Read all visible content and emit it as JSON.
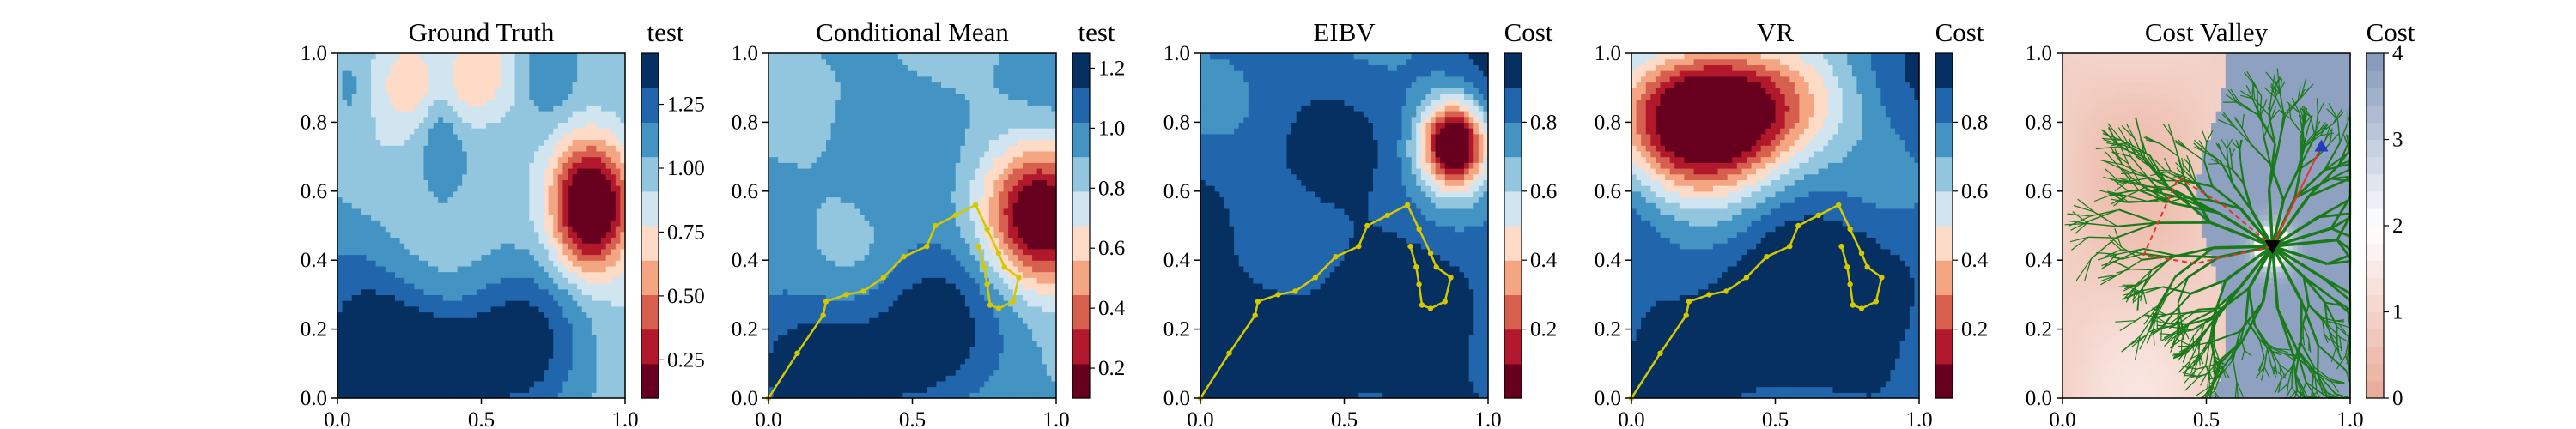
{
  "chart_data": [
    {
      "type": "heatmap",
      "title": "Ground Truth",
      "colorbar_label": "test",
      "colormap": "RdBu",
      "xlim": [
        0,
        1
      ],
      "ylim": [
        0,
        1
      ],
      "xticks": [
        "0.0",
        "0.5",
        "1.0"
      ],
      "yticks": [
        "0.0",
        "0.2",
        "0.4",
        "0.6",
        "0.8",
        "1.0"
      ],
      "colorbar_range": [
        0.1,
        1.45
      ],
      "colorbar_ticks": [
        "0.25",
        "0.50",
        "0.75",
        "1.00",
        "1.25"
      ],
      "colorbar_tick_values": [
        0.25,
        0.5,
        0.75,
        1.0,
        1.25
      ],
      "levels": 10,
      "field_features": [
        {
          "x": 0.88,
          "y": 0.55,
          "sx": 0.09,
          "sy": 0.13,
          "amp": -1.0
        },
        {
          "x": 0.38,
          "y": 0.92,
          "sx": 0.17,
          "sy": 0.1,
          "amp": -0.38
        },
        {
          "x": 0.36,
          "y": 0.86,
          "sx": 0.05,
          "sy": 0.18,
          "amp": 0.25
        },
        {
          "x": 0.22,
          "y": 0.08,
          "sx": 0.22,
          "sy": 0.12,
          "amp": 0.55
        },
        {
          "x": 0.62,
          "y": 0.12,
          "sx": 0.16,
          "sy": 0.18,
          "amp": 0.4
        },
        {
          "x": 0.12,
          "y": 0.3,
          "sx": 0.18,
          "sy": 0.15,
          "amp": 0.3
        },
        {
          "x": 0.05,
          "y": 0.9,
          "sx": 0.07,
          "sy": 0.1,
          "amp": 0.25
        },
        {
          "x": 0.72,
          "y": 0.95,
          "sx": 0.08,
          "sy": 0.1,
          "amp": 0.3
        }
      ],
      "base": 0.95
    },
    {
      "type": "heatmap",
      "title": "Conditional Mean",
      "colorbar_label": "test",
      "colormap": "RdBu",
      "xlim": [
        0,
        1
      ],
      "ylim": [
        0,
        1
      ],
      "xticks": [
        "0.0",
        "0.5",
        "1.0"
      ],
      "yticks": [
        "0.0",
        "0.2",
        "0.4",
        "0.6",
        "0.8",
        "1.0"
      ],
      "colorbar_range": [
        0.1,
        1.25
      ],
      "colorbar_ticks": [
        "0.2",
        "0.4",
        "0.6",
        "0.8",
        "1.0",
        "1.2"
      ],
      "colorbar_tick_values": [
        0.2,
        0.4,
        0.6,
        0.8,
        1.0,
        1.2
      ],
      "levels": 10,
      "field_features": [
        {
          "x": 0.95,
          "y": 0.52,
          "sx": 0.13,
          "sy": 0.14,
          "amp": -0.85
        },
        {
          "x": 0.25,
          "y": 0.1,
          "sx": 0.3,
          "sy": 0.17,
          "amp": 0.25
        },
        {
          "x": 0.55,
          "y": 0.2,
          "sx": 0.13,
          "sy": 0.2,
          "amp": 0.2
        }
      ],
      "base": 0.92,
      "path": [
        [
          0.0,
          0.0
        ],
        [
          0.1,
          0.13
        ],
        [
          0.19,
          0.24
        ],
        [
          0.2,
          0.28
        ],
        [
          0.27,
          0.3
        ],
        [
          0.33,
          0.31
        ],
        [
          0.4,
          0.35
        ],
        [
          0.47,
          0.41
        ],
        [
          0.55,
          0.44
        ],
        [
          0.58,
          0.5
        ],
        [
          0.65,
          0.53
        ],
        [
          0.72,
          0.56
        ],
        [
          0.76,
          0.49
        ],
        [
          0.8,
          0.42
        ],
        [
          0.82,
          0.38
        ],
        [
          0.87,
          0.35
        ],
        [
          0.85,
          0.28
        ],
        [
          0.8,
          0.26
        ],
        [
          0.77,
          0.27
        ],
        [
          0.76,
          0.33
        ],
        [
          0.75,
          0.38
        ],
        [
          0.73,
          0.44
        ]
      ]
    },
    {
      "type": "heatmap",
      "title": "EIBV",
      "colorbar_label": "Cost",
      "colormap": "RdBu",
      "xlim": [
        0,
        1
      ],
      "ylim": [
        0,
        1
      ],
      "xticks": [
        "0.0",
        "0.5",
        "1.0"
      ],
      "yticks": [
        "0.0",
        "0.2",
        "0.4",
        "0.6",
        "0.8",
        "1.0"
      ],
      "colorbar_range": [
        0,
        1
      ],
      "colorbar_ticks": [
        "0.2",
        "0.4",
        "0.6",
        "0.8"
      ],
      "colorbar_tick_values": [
        0.2,
        0.4,
        0.6,
        0.8
      ],
      "levels": 10,
      "field_features": [
        {
          "x": 0.88,
          "y": 0.74,
          "sx": 0.08,
          "sy": 0.09,
          "amp": -0.95
        },
        {
          "x": 0.25,
          "y": 0.1,
          "sx": 0.5,
          "sy": 0.28,
          "amp": 0.15
        }
      ],
      "base": 0.85,
      "path": [
        [
          0.0,
          0.0
        ],
        [
          0.1,
          0.13
        ],
        [
          0.19,
          0.24
        ],
        [
          0.2,
          0.28
        ],
        [
          0.27,
          0.3
        ],
        [
          0.33,
          0.31
        ],
        [
          0.4,
          0.35
        ],
        [
          0.47,
          0.41
        ],
        [
          0.55,
          0.44
        ],
        [
          0.58,
          0.5
        ],
        [
          0.65,
          0.53
        ],
        [
          0.72,
          0.56
        ],
        [
          0.76,
          0.49
        ],
        [
          0.8,
          0.42
        ],
        [
          0.82,
          0.38
        ],
        [
          0.87,
          0.35
        ],
        [
          0.85,
          0.28
        ],
        [
          0.8,
          0.26
        ],
        [
          0.77,
          0.27
        ],
        [
          0.76,
          0.33
        ],
        [
          0.75,
          0.38
        ],
        [
          0.73,
          0.44
        ]
      ]
    },
    {
      "type": "heatmap",
      "title": "VR",
      "colorbar_label": "Cost",
      "colormap": "RdBu",
      "xlim": [
        0,
        1
      ],
      "ylim": [
        0,
        1
      ],
      "xticks": [
        "0.0",
        "0.5",
        "1.0"
      ],
      "yticks": [
        "0.0",
        "0.2",
        "0.4",
        "0.6",
        "0.8",
        "1.0"
      ],
      "colorbar_range": [
        0,
        1
      ],
      "colorbar_ticks": [
        "0.2",
        "0.4",
        "0.6",
        "0.8"
      ],
      "colorbar_tick_values": [
        0.2,
        0.4,
        0.6,
        0.8
      ],
      "levels": 10,
      "field_features": [
        {
          "x": 0.27,
          "y": 0.8,
          "sx": 0.2,
          "sy": 0.15,
          "amp": -1.05
        },
        {
          "x": 0.55,
          "y": 0.85,
          "sx": 0.18,
          "sy": 0.12,
          "amp": -0.3
        },
        {
          "x": 0.55,
          "y": 0.28,
          "sx": 0.25,
          "sy": 0.18,
          "amp": 0.25
        }
      ],
      "base": 0.85,
      "path": [
        [
          0.0,
          0.0
        ],
        [
          0.1,
          0.13
        ],
        [
          0.19,
          0.24
        ],
        [
          0.2,
          0.28
        ],
        [
          0.27,
          0.3
        ],
        [
          0.33,
          0.31
        ],
        [
          0.4,
          0.35
        ],
        [
          0.47,
          0.41
        ],
        [
          0.55,
          0.44
        ],
        [
          0.58,
          0.5
        ],
        [
          0.65,
          0.53
        ],
        [
          0.72,
          0.56
        ],
        [
          0.76,
          0.49
        ],
        [
          0.8,
          0.42
        ],
        [
          0.82,
          0.38
        ],
        [
          0.87,
          0.35
        ],
        [
          0.85,
          0.28
        ],
        [
          0.8,
          0.26
        ],
        [
          0.77,
          0.27
        ],
        [
          0.76,
          0.33
        ],
        [
          0.75,
          0.38
        ],
        [
          0.73,
          0.44
        ]
      ]
    },
    {
      "type": "heatmap",
      "title": "Cost Valley",
      "colorbar_label": "Cost",
      "colormap": "RdWhiteBlue",
      "xlim": [
        0,
        1
      ],
      "ylim": [
        0,
        1
      ],
      "xticks": [
        "0.0",
        "0.5",
        "1.0"
      ],
      "yticks": [
        "0.0",
        "0.2",
        "0.4",
        "0.6",
        "0.8",
        "1.0"
      ],
      "colorbar_range": [
        0,
        4
      ],
      "colorbar_ticks": [
        "0",
        "1",
        "2",
        "3",
        "4"
      ],
      "colorbar_tick_values": [
        0,
        1,
        2,
        3,
        4
      ],
      "levels": 20,
      "valley": {
        "x": 0.73,
        "y": 0.44
      },
      "blue_region_start_x": 0.52,
      "start_marker": {
        "x": 0.73,
        "y": 0.44
      },
      "goal_marker": {
        "x": 0.9,
        "y": 0.73
      },
      "tree_color": "#1a7a1a",
      "planned_path_color": "#e8322b"
    }
  ]
}
